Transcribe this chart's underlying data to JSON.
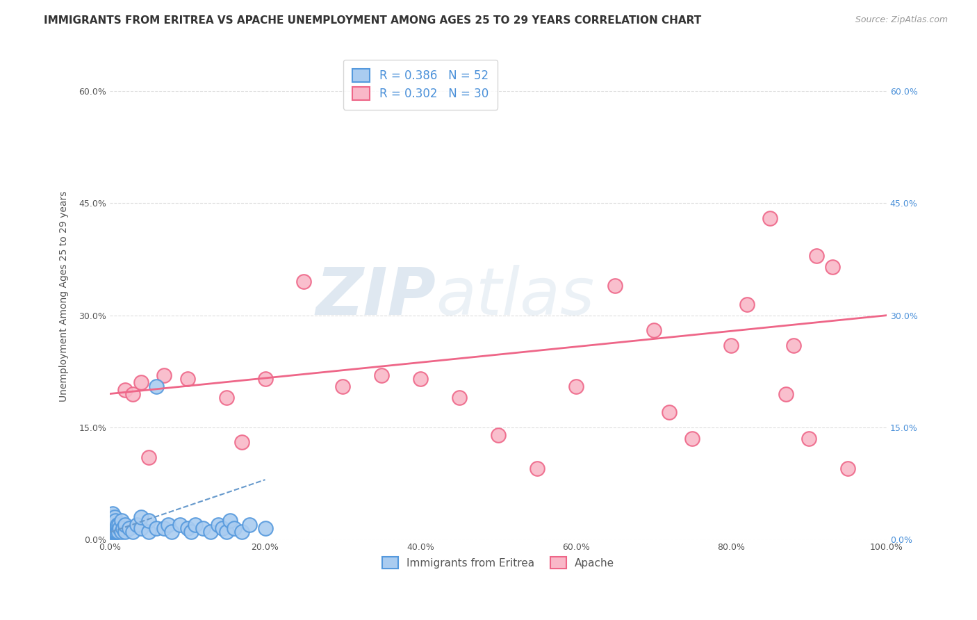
{
  "title": "IMMIGRANTS FROM ERITREA VS APACHE UNEMPLOYMENT AMONG AGES 25 TO 29 YEARS CORRELATION CHART",
  "source": "Source: ZipAtlas.com",
  "ylabel": "Unemployment Among Ages 25 to 29 years",
  "xlabel": "",
  "series1_label": "Immigrants from Eritrea",
  "series2_label": "Apache",
  "series1_R": 0.386,
  "series1_N": 52,
  "series2_R": 0.302,
  "series2_N": 30,
  "series1_color": "#aaccf0",
  "series2_color": "#f9b8c8",
  "series1_edge": "#5599dd",
  "series2_edge": "#ee6688",
  "trendline1_color": "#6699cc",
  "trendline2_color": "#ee6688",
  "background_color": "#ffffff",
  "xlim": [
    0,
    100
  ],
  "ylim": [
    0,
    65
  ],
  "xticks": [
    0,
    20,
    40,
    60,
    80,
    100
  ],
  "xtick_labels": [
    "0.0%",
    "20.0%",
    "40.0%",
    "60.0%",
    "80.0%",
    "100.0%"
  ],
  "yticks": [
    0,
    15,
    30,
    45,
    60
  ],
  "ytick_labels": [
    "0.0%",
    "15.0%",
    "30.0%",
    "45.0%",
    "60.0%"
  ],
  "series1_x": [
    0.1,
    0.1,
    0.2,
    0.2,
    0.3,
    0.3,
    0.4,
    0.4,
    0.5,
    0.5,
    0.6,
    0.6,
    0.7,
    0.7,
    0.8,
    0.9,
    1.0,
    1.0,
    1.1,
    1.2,
    1.3,
    1.5,
    1.5,
    1.7,
    2.0,
    2.0,
    2.5,
    3.0,
    3.5,
    4.0,
    4.0,
    5.0,
    5.0,
    6.0,
    6.0,
    7.0,
    7.5,
    8.0,
    9.0,
    10.0,
    10.5,
    11.0,
    12.0,
    13.0,
    14.0,
    14.5,
    15.0,
    15.5,
    16.0,
    17.0,
    18.0,
    20.0
  ],
  "series1_y": [
    1.0,
    2.5,
    1.5,
    3.0,
    1.0,
    2.0,
    1.5,
    3.5,
    1.0,
    2.0,
    1.5,
    3.0,
    1.0,
    2.5,
    1.5,
    1.0,
    1.5,
    2.0,
    1.0,
    2.0,
    1.5,
    1.0,
    2.5,
    1.5,
    1.0,
    2.0,
    1.5,
    1.0,
    2.0,
    1.5,
    3.0,
    1.0,
    2.5,
    1.5,
    20.5,
    1.5,
    2.0,
    1.0,
    2.0,
    1.5,
    1.0,
    2.0,
    1.5,
    1.0,
    2.0,
    1.5,
    1.0,
    2.5,
    1.5,
    1.0,
    2.0,
    1.5
  ],
  "series1_trendline_x0": 0.1,
  "series1_trendline_x1": 20.0,
  "series1_trendline_y0": 1.0,
  "series1_trendline_y1": 8.0,
  "series2_x": [
    2.0,
    3.0,
    4.0,
    5.0,
    7.0,
    10.0,
    15.0,
    17.0,
    20.0,
    25.0,
    30.0,
    35.0,
    40.0,
    45.0,
    50.0,
    55.0,
    60.0,
    65.0,
    70.0,
    72.0,
    75.0,
    80.0,
    82.0,
    85.0,
    87.0,
    88.0,
    90.0,
    91.0,
    93.0,
    95.0
  ],
  "series2_y": [
    20.0,
    19.5,
    21.0,
    11.0,
    22.0,
    21.5,
    19.0,
    13.0,
    21.5,
    34.5,
    20.5,
    22.0,
    21.5,
    19.0,
    14.0,
    9.5,
    20.5,
    34.0,
    28.0,
    17.0,
    13.5,
    26.0,
    31.5,
    43.0,
    19.5,
    26.0,
    13.5,
    38.0,
    36.5,
    9.5
  ],
  "series2_trendline_x0": 0,
  "series2_trendline_x1": 100,
  "series2_trendline_y0": 19.5,
  "series2_trendline_y1": 30.0,
  "watermark_zip": "ZIP",
  "watermark_atlas": "atlas",
  "legend_facecolor": "#ffffff",
  "legend_edgecolor": "#cccccc",
  "grid_color": "#dddddd",
  "title_fontsize": 11,
  "axis_label_fontsize": 10,
  "tick_fontsize": 9,
  "legend_fontsize": 12
}
